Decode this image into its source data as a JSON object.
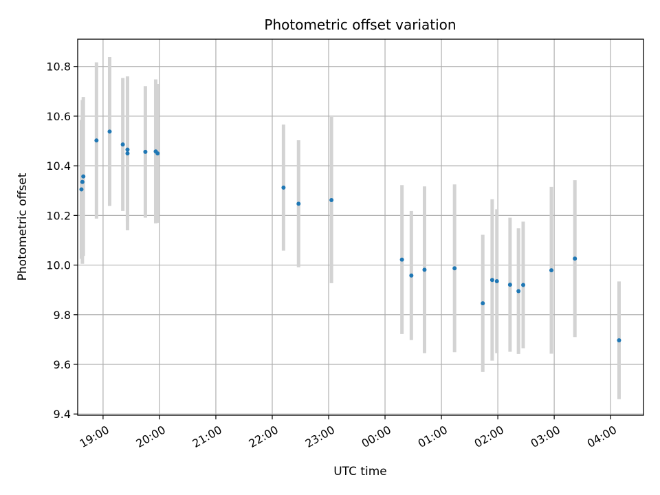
{
  "chart_data": {
    "type": "scatter",
    "title": "Photometric offset variation",
    "xlabel": "UTC time",
    "ylabel": "Photometric offset",
    "xlim": [
      "18:33",
      "04:35"
    ],
    "ylim": [
      9.395,
      10.91
    ],
    "grid": true,
    "x_ticks": [
      "19:00",
      "20:00",
      "21:00",
      "22:00",
      "23:00",
      "00:00",
      "01:00",
      "02:00",
      "03:00",
      "04:00"
    ],
    "y_ticks": [
      "9.4",
      "9.6",
      "9.8",
      "10.0",
      "10.2",
      "10.4",
      "10.6",
      "10.8"
    ],
    "colors": {
      "point": "#1f77b4",
      "errorbar": "#d3d3d3"
    },
    "series": [
      {
        "points": [
          {
            "time": "18:37",
            "y": 10.305,
            "err": 0.28
          },
          {
            "time": "18:38",
            "y": 10.335,
            "err": 0.33
          },
          {
            "time": "18:39",
            "y": 10.357,
            "err": 0.32
          },
          {
            "time": "18:53",
            "y": 10.502,
            "err": 0.315
          },
          {
            "time": "19:07",
            "y": 10.538,
            "err": 0.3
          },
          {
            "time": "19:21",
            "y": 10.486,
            "err": 0.268
          },
          {
            "time": "19:26",
            "y": 10.465,
            "err": 0.29
          },
          {
            "time": "19:26",
            "y": 10.45,
            "err": 0.31
          },
          {
            "time": "19:45",
            "y": 10.456,
            "err": 0.265
          },
          {
            "time": "19:56",
            "y": 10.458,
            "err": 0.29
          },
          {
            "time": "19:58",
            "y": 10.45,
            "err": 0.28
          },
          {
            "time": "22:12",
            "y": 10.312,
            "err": 0.254
          },
          {
            "time": "22:28",
            "y": 10.247,
            "err": 0.256
          },
          {
            "time": "23:03",
            "y": 10.262,
            "err": 0.335
          },
          {
            "time": "00:18",
            "y": 10.022,
            "err": 0.3
          },
          {
            "time": "00:28",
            "y": 9.958,
            "err": 0.26
          },
          {
            "time": "00:42",
            "y": 9.981,
            "err": 0.336
          },
          {
            "time": "01:14",
            "y": 9.987,
            "err": 0.338
          },
          {
            "time": "01:44",
            "y": 9.846,
            "err": 0.276
          },
          {
            "time": "01:54",
            "y": 9.94,
            "err": 0.325
          },
          {
            "time": "01:59",
            "y": 9.935,
            "err": 0.29
          },
          {
            "time": "02:13",
            "y": 9.921,
            "err": 0.27
          },
          {
            "time": "02:22",
            "y": 9.895,
            "err": 0.253
          },
          {
            "time": "02:27",
            "y": 9.92,
            "err": 0.255
          },
          {
            "time": "02:57",
            "y": 9.979,
            "err": 0.336
          },
          {
            "time": "03:22",
            "y": 10.026,
            "err": 0.316
          },
          {
            "time": "04:09",
            "y": 9.697,
            "err": 0.237
          }
        ]
      }
    ]
  }
}
